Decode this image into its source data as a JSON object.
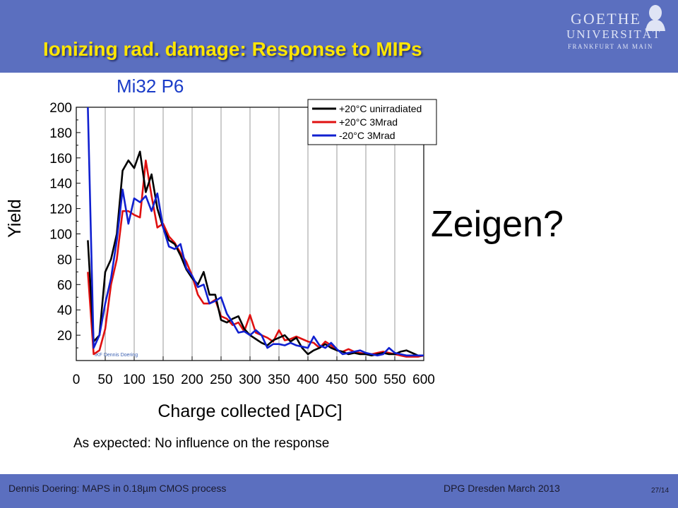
{
  "slide": {
    "title": "Ionizing rad. damage: Response to MIPs",
    "callout": "Zeigen?",
    "caption": "As expected: No influence on the response",
    "footer_left": "Dennis Doering: MAPS in 0.18µm CMOS process",
    "footer_mid": "DPG Dresden March 2013",
    "page": "27/14"
  },
  "logo": {
    "line1": "GOETHE",
    "line2": "UNIVERSITÄT",
    "line3": "FRANKFURT AM MAIN"
  },
  "colors": {
    "header_bg": "#5b6fbf",
    "title": "#ffe600"
  },
  "chart_data": {
    "type": "line",
    "title": "Mi32 P6",
    "xlabel": "Charge collected [ADC]",
    "ylabel": "Yield",
    "xlim": [
      0,
      600
    ],
    "ylim": [
      0,
      200
    ],
    "xticks": [
      0,
      50,
      100,
      150,
      200,
      250,
      300,
      350,
      400,
      450,
      500,
      550,
      600
    ],
    "yticks": [
      20,
      40,
      60,
      80,
      100,
      120,
      140,
      160,
      180,
      200
    ],
    "grid": "vertical",
    "legend_position": "top-right",
    "watermark": "IKF Dennis Doering",
    "x": [
      20,
      30,
      40,
      50,
      60,
      70,
      80,
      90,
      100,
      110,
      120,
      130,
      140,
      150,
      160,
      170,
      180,
      190,
      200,
      210,
      220,
      230,
      240,
      250,
      260,
      270,
      280,
      290,
      300,
      310,
      320,
      330,
      340,
      350,
      360,
      370,
      380,
      390,
      400,
      410,
      420,
      430,
      440,
      450,
      460,
      470,
      480,
      490,
      500,
      510,
      520,
      530,
      540,
      550,
      560,
      570,
      580,
      590,
      600
    ],
    "series": [
      {
        "name": "+20°C unirradiated",
        "color": "#000000",
        "values": [
          95,
          15,
          20,
          70,
          80,
          100,
          150,
          158,
          152,
          165,
          133,
          147,
          120,
          105,
          95,
          92,
          83,
          72,
          65,
          60,
          70,
          52,
          52,
          32,
          30,
          33,
          35,
          25,
          20,
          17,
          14,
          12,
          16,
          18,
          20,
          15,
          18,
          10,
          5,
          8,
          10,
          13,
          10,
          8,
          7,
          5,
          6,
          5,
          5,
          4,
          5,
          6,
          5,
          5,
          7,
          8,
          6,
          4,
          4
        ]
      },
      {
        "name": "+20°C 3Mrad",
        "color": "#e01010",
        "values": [
          70,
          5,
          8,
          25,
          60,
          80,
          118,
          118,
          115,
          113,
          158,
          130,
          105,
          108,
          98,
          93,
          85,
          78,
          67,
          52,
          45,
          45,
          48,
          35,
          33,
          28,
          30,
          23,
          36,
          22,
          20,
          18,
          15,
          24,
          16,
          17,
          19,
          17,
          15,
          14,
          10,
          15,
          12,
          8,
          7,
          9,
          7,
          6,
          5,
          5,
          6,
          7,
          6,
          5,
          4,
          3,
          3,
          3,
          4
        ]
      },
      {
        "name": "-20°C 3Mrad",
        "color": "#1020d0",
        "values": [
          200,
          10,
          20,
          45,
          65,
          95,
          135,
          108,
          128,
          125,
          130,
          118,
          132,
          105,
          90,
          88,
          92,
          73,
          67,
          58,
          60,
          45,
          47,
          50,
          37,
          30,
          22,
          23,
          20,
          24,
          20,
          10,
          13,
          13,
          12,
          14,
          12,
          11,
          10,
          19,
          12,
          10,
          14,
          9,
          5,
          6,
          7,
          8,
          6,
          5,
          4,
          5,
          10,
          6,
          5,
          4,
          4,
          4,
          4
        ]
      }
    ]
  }
}
